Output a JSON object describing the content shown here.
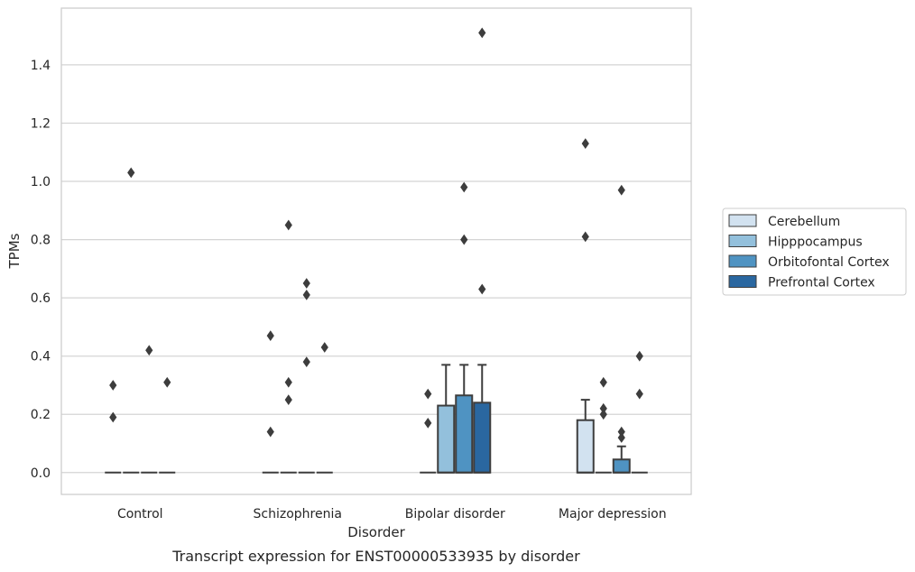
{
  "chart_data": {
    "type": "box",
    "caption": "Transcript expression for ENST00000533935 by disorder",
    "xlabel": "Disorder",
    "ylabel": "TPMs",
    "ylim": [
      -0.075,
      1.595
    ],
    "yticks": [
      "0.0",
      "0.2",
      "0.4",
      "0.6",
      "0.8",
      "1.0",
      "1.2",
      "1.4"
    ],
    "grid": "horizontal",
    "legend_position": "right",
    "categories": [
      "Control",
      "Schizophrenia",
      "Bipolar disorder",
      "Major depression"
    ],
    "series": [
      {
        "name": "Cerebellum",
        "color": "#d2e2f0"
      },
      {
        "name": "Hipppocampus",
        "color": "#93c0dc"
      },
      {
        "name": "Orbitofontal Cortex",
        "color": "#4f93c2"
      },
      {
        "name": "Prefrontal Cortex",
        "color": "#2a67a0"
      }
    ],
    "boxes": [
      {
        "category": "Control",
        "series": "Cerebellum",
        "q1": 0,
        "median": 0,
        "q3": 0,
        "whisker_low": 0,
        "whisker_high": 0,
        "outliers": [
          0.19,
          0.3
        ]
      },
      {
        "category": "Control",
        "series": "Hipppocampus",
        "q1": 0,
        "median": 0,
        "q3": 0,
        "whisker_low": 0,
        "whisker_high": 0,
        "outliers": [
          1.03
        ]
      },
      {
        "category": "Control",
        "series": "Orbitofontal Cortex",
        "q1": 0,
        "median": 0,
        "q3": 0,
        "whisker_low": 0,
        "whisker_high": 0,
        "outliers": [
          0.42
        ]
      },
      {
        "category": "Control",
        "series": "Prefrontal Cortex",
        "q1": 0,
        "median": 0,
        "q3": 0,
        "whisker_low": 0,
        "whisker_high": 0,
        "outliers": [
          0.31
        ]
      },
      {
        "category": "Schizophrenia",
        "series": "Cerebellum",
        "q1": 0,
        "median": 0,
        "q3": 0,
        "whisker_low": 0,
        "whisker_high": 0,
        "outliers": [
          0.14,
          0.47
        ]
      },
      {
        "category": "Schizophrenia",
        "series": "Hipppocampus",
        "q1": 0,
        "median": 0,
        "q3": 0,
        "whisker_low": 0,
        "whisker_high": 0,
        "outliers": [
          0.25,
          0.31,
          0.85
        ]
      },
      {
        "category": "Schizophrenia",
        "series": "Orbitofontal Cortex",
        "q1": 0,
        "median": 0,
        "q3": 0,
        "whisker_low": 0,
        "whisker_high": 0,
        "outliers": [
          0.38,
          0.61,
          0.65
        ]
      },
      {
        "category": "Schizophrenia",
        "series": "Prefrontal Cortex",
        "q1": 0,
        "median": 0,
        "q3": 0,
        "whisker_low": 0,
        "whisker_high": 0,
        "outliers": [
          0.43
        ]
      },
      {
        "category": "Bipolar disorder",
        "series": "Cerebellum",
        "q1": 0,
        "median": 0,
        "q3": 0,
        "whisker_low": 0,
        "whisker_high": 0,
        "outliers": [
          0.17,
          0.27
        ]
      },
      {
        "category": "Bipolar disorder",
        "series": "Hipppocampus",
        "q1": 0,
        "median": 0,
        "q3": 0.23,
        "whisker_low": 0,
        "whisker_high": 0.37,
        "outliers": []
      },
      {
        "category": "Bipolar disorder",
        "series": "Orbitofontal Cortex",
        "q1": 0,
        "median": 0,
        "q3": 0.265,
        "whisker_low": 0,
        "whisker_high": 0.37,
        "outliers": [
          0.8,
          0.98
        ]
      },
      {
        "category": "Bipolar disorder",
        "series": "Prefrontal Cortex",
        "q1": 0,
        "median": 0,
        "q3": 0.24,
        "whisker_low": 0,
        "whisker_high": 0.37,
        "outliers": [
          0.63,
          1.51
        ]
      },
      {
        "category": "Major depression",
        "series": "Cerebellum",
        "q1": 0,
        "median": 0,
        "q3": 0.18,
        "whisker_low": 0,
        "whisker_high": 0.25,
        "outliers": [
          0.81,
          1.13
        ]
      },
      {
        "category": "Major depression",
        "series": "Hipppocampus",
        "q1": 0,
        "median": 0,
        "q3": 0,
        "whisker_low": 0,
        "whisker_high": 0,
        "outliers": [
          0.2,
          0.22,
          0.31
        ]
      },
      {
        "category": "Major depression",
        "series": "Orbitofontal Cortex",
        "q1": 0,
        "median": 0,
        "q3": 0.045,
        "whisker_low": 0,
        "whisker_high": 0.09,
        "outliers": [
          0.12,
          0.14,
          0.97
        ]
      },
      {
        "category": "Major depression",
        "series": "Prefrontal Cortex",
        "q1": 0,
        "median": 0,
        "q3": 0,
        "whisker_low": 0,
        "whisker_high": 0,
        "outliers": [
          0.27,
          0.4
        ]
      }
    ]
  }
}
